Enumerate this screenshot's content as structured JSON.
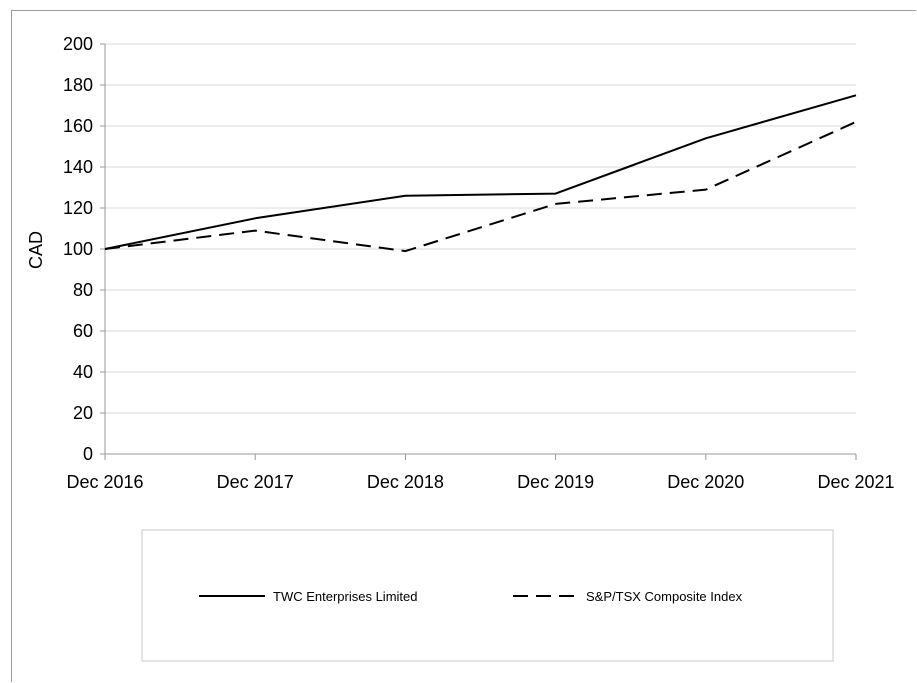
{
  "chart_data": {
    "type": "line",
    "ylabel": "CAD",
    "ylim": [
      0,
      200
    ],
    "yticks": [
      0,
      20,
      40,
      60,
      80,
      100,
      120,
      140,
      160,
      180,
      200
    ],
    "categories": [
      "Dec 2016",
      "Dec 2017",
      "Dec 2018",
      "Dec 2019",
      "Dec 2020",
      "Dec 2021"
    ],
    "series": [
      {
        "name": "TWC Enterprises Limited",
        "values": [
          100,
          115,
          126,
          127,
          154,
          175
        ],
        "style": "solid",
        "color": "#000000"
      },
      {
        "name": "S&P/TSX Composite Index",
        "values": [
          100,
          109,
          99,
          122,
          129,
          162
        ],
        "style": "dashed",
        "color": "#000000"
      }
    ],
    "grid": true,
    "legend_position": "bottom"
  }
}
